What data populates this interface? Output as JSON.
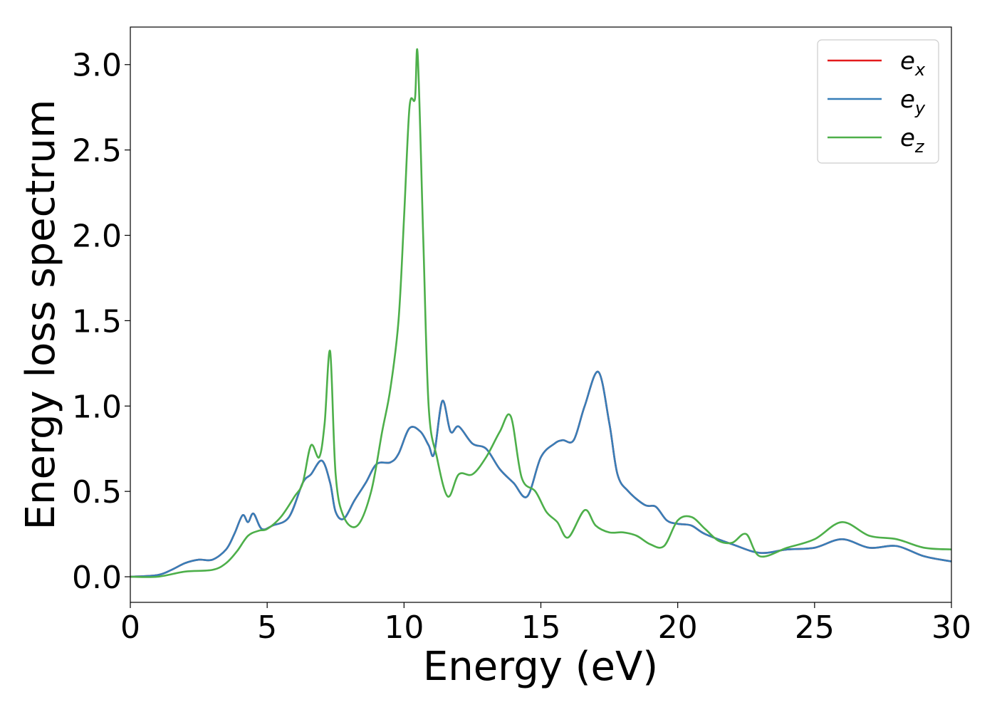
{
  "chart_data": {
    "type": "line",
    "title": "",
    "xlabel": "Energy (eV)",
    "ylabel": "Energy loss spectrum",
    "xlim": [
      0,
      30
    ],
    "ylim": [
      -0.15,
      3.22
    ],
    "xticks": [
      0,
      5,
      10,
      15,
      20,
      25,
      30
    ],
    "xtick_labels": [
      "0",
      "5",
      "10",
      "15",
      "20",
      "25",
      "30"
    ],
    "yticks": [
      0.0,
      0.5,
      1.0,
      1.5,
      2.0,
      2.5,
      3.0
    ],
    "ytick_labels": [
      "0.0",
      "0.5",
      "1.0",
      "1.5",
      "2.0",
      "2.5",
      "3.0"
    ],
    "grid": false,
    "legend_position": "top-right",
    "series": [
      {
        "name": "e_x",
        "label_base": "e",
        "label_sub": "x",
        "color": "#e41a1c",
        "x": [
          0,
          1,
          1.5,
          2,
          2.5,
          3,
          3.5,
          3.8,
          4.1,
          4.3,
          4.5,
          4.8,
          5.2,
          5.8,
          6.3,
          6.6,
          7,
          7.3,
          7.5,
          7.8,
          8.2,
          8.6,
          9,
          9.5,
          9.8,
          10.2,
          10.6,
          10.9,
          11.1,
          11.4,
          11.7,
          12,
          12.5,
          13,
          13.5,
          14,
          14.5,
          15,
          15.5,
          15.8,
          16.2,
          16.6,
          17.1,
          17.5,
          17.8,
          18.2,
          18.8,
          19.2,
          19.6,
          20,
          20.5,
          21,
          22,
          23,
          24,
          25,
          26,
          27,
          28,
          29,
          30
        ],
        "y": [
          0,
          0.01,
          0.04,
          0.08,
          0.1,
          0.1,
          0.16,
          0.25,
          0.36,
          0.32,
          0.37,
          0.28,
          0.3,
          0.35,
          0.55,
          0.6,
          0.68,
          0.55,
          0.38,
          0.34,
          0.45,
          0.55,
          0.66,
          0.67,
          0.72,
          0.87,
          0.85,
          0.77,
          0.72,
          1.03,
          0.85,
          0.88,
          0.78,
          0.75,
          0.63,
          0.55,
          0.47,
          0.7,
          0.78,
          0.8,
          0.8,
          1.0,
          1.2,
          0.9,
          0.6,
          0.5,
          0.42,
          0.41,
          0.33,
          0.31,
          0.3,
          0.25,
          0.19,
          0.14,
          0.16,
          0.17,
          0.22,
          0.17,
          0.18,
          0.12,
          0.09
        ]
      },
      {
        "name": "e_y",
        "label_base": "e",
        "label_sub": "y",
        "color": "#377eb8",
        "x": [
          0,
          1,
          1.5,
          2,
          2.5,
          3,
          3.5,
          3.8,
          4.1,
          4.3,
          4.5,
          4.8,
          5.2,
          5.8,
          6.3,
          6.6,
          7,
          7.3,
          7.5,
          7.8,
          8.2,
          8.6,
          9,
          9.5,
          9.8,
          10.2,
          10.6,
          10.9,
          11.1,
          11.4,
          11.7,
          12,
          12.5,
          13,
          13.5,
          14,
          14.5,
          15,
          15.5,
          15.8,
          16.2,
          16.6,
          17.1,
          17.5,
          17.8,
          18.2,
          18.8,
          19.2,
          19.6,
          20,
          20.5,
          21,
          22,
          23,
          24,
          25,
          26,
          27,
          28,
          29,
          30
        ],
        "y": [
          0,
          0.01,
          0.04,
          0.08,
          0.1,
          0.1,
          0.16,
          0.25,
          0.36,
          0.32,
          0.37,
          0.28,
          0.3,
          0.35,
          0.55,
          0.6,
          0.68,
          0.55,
          0.38,
          0.34,
          0.45,
          0.55,
          0.66,
          0.67,
          0.72,
          0.87,
          0.85,
          0.77,
          0.72,
          1.03,
          0.85,
          0.88,
          0.78,
          0.75,
          0.63,
          0.55,
          0.47,
          0.7,
          0.78,
          0.8,
          0.8,
          1.0,
          1.2,
          0.9,
          0.6,
          0.5,
          0.42,
          0.41,
          0.33,
          0.31,
          0.3,
          0.25,
          0.19,
          0.14,
          0.16,
          0.17,
          0.22,
          0.17,
          0.18,
          0.12,
          0.09
        ]
      },
      {
        "name": "e_z",
        "label_base": "e",
        "label_sub": "z",
        "color": "#4daf4a",
        "x": [
          0,
          1,
          2,
          3,
          3.5,
          3.9,
          4.3,
          4.7,
          5,
          5.5,
          6,
          6.3,
          6.6,
          6.9,
          7.1,
          7.3,
          7.5,
          7.8,
          8.3,
          8.8,
          9.2,
          9.5,
          9.8,
          10,
          10.2,
          10.4,
          10.5,
          10.7,
          10.9,
          11.2,
          11.6,
          12,
          12.5,
          13,
          13.5,
          13.9,
          14.3,
          14.8,
          15.2,
          15.6,
          16,
          16.6,
          17,
          17.5,
          18,
          18.5,
          19,
          19.5,
          20,
          20.5,
          21,
          21.5,
          22,
          22.5,
          23,
          24,
          25,
          26,
          27,
          28,
          29,
          30
        ],
        "y": [
          0,
          0,
          0.03,
          0.04,
          0.08,
          0.15,
          0.24,
          0.27,
          0.28,
          0.35,
          0.47,
          0.55,
          0.77,
          0.7,
          0.9,
          1.32,
          0.6,
          0.35,
          0.3,
          0.5,
          0.85,
          1.1,
          1.5,
          2.1,
          2.75,
          2.8,
          3.06,
          2.0,
          1.0,
          0.7,
          0.47,
          0.6,
          0.6,
          0.7,
          0.85,
          0.94,
          0.58,
          0.5,
          0.38,
          0.32,
          0.23,
          0.39,
          0.3,
          0.26,
          0.26,
          0.24,
          0.19,
          0.18,
          0.33,
          0.35,
          0.28,
          0.21,
          0.2,
          0.25,
          0.12,
          0.17,
          0.22,
          0.32,
          0.24,
          0.22,
          0.17,
          0.16
        ]
      }
    ]
  }
}
